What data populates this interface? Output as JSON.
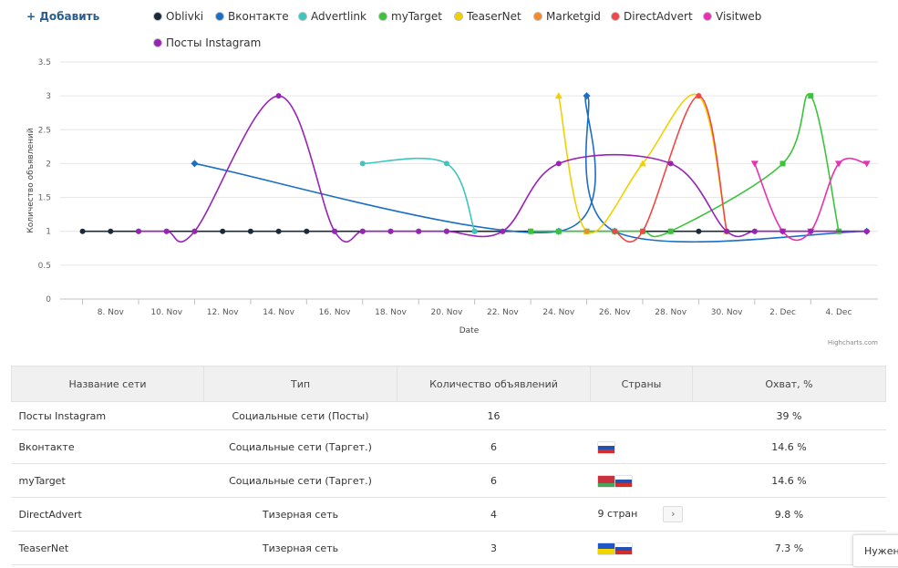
{
  "toolbar": {
    "add_label": "+ Добавить"
  },
  "legend": [
    {
      "label": "Oblivki",
      "color": "#1a2a3a"
    },
    {
      "label": "Вконтакте",
      "color": "#1a6fc4"
    },
    {
      "label": "Advertlink",
      "color": "#3cc6be"
    },
    {
      "label": "myTarget",
      "color": "#3ac43a"
    },
    {
      "label": "TeaserNet",
      "color": "#f2d000"
    },
    {
      "label": "Marketgid",
      "color": "#f58a2a"
    },
    {
      "label": "DirectAdvert",
      "color": "#f04848"
    },
    {
      "label": "Visitweb",
      "color": "#e830b4"
    },
    {
      "label": "Посты Instagram",
      "color": "#9a22b8"
    }
  ],
  "chart_data": {
    "type": "line",
    "xlabel": "Date",
    "ylabel": "Количество объявлений",
    "ylim": [
      0,
      3.5
    ],
    "yticks": [
      "0",
      "0.5",
      "1",
      "1.5",
      "2",
      "2.5",
      "3",
      "3.5"
    ],
    "xticks": [
      "8. Nov",
      "10. Nov",
      "12. Nov",
      "14. Nov",
      "16. Nov",
      "18. Nov",
      "20. Nov",
      "22. Nov",
      "24. Nov",
      "26. Nov",
      "28. Nov",
      "30. Nov",
      "2. Dec",
      "4. Dec"
    ],
    "credit": "Highcharts.com",
    "series": [
      {
        "name": "Oblivki",
        "color": "#1a2a3a",
        "marker": "circle",
        "points": [
          [
            7,
            1
          ],
          [
            8,
            1
          ],
          [
            9,
            1
          ],
          [
            10,
            1
          ],
          [
            11,
            1
          ],
          [
            12,
            1
          ],
          [
            13,
            1
          ],
          [
            14,
            1
          ],
          [
            15,
            1
          ],
          [
            16,
            1
          ],
          [
            17,
            1
          ],
          [
            18,
            1
          ],
          [
            19,
            1
          ],
          [
            20,
            1
          ],
          [
            21,
            1
          ],
          [
            22,
            1
          ],
          [
            23,
            1
          ],
          [
            24,
            1
          ],
          [
            25,
            1
          ],
          [
            26,
            1
          ],
          [
            27,
            1
          ],
          [
            28,
            1
          ],
          [
            29,
            1
          ],
          [
            30,
            1
          ],
          [
            31,
            1
          ],
          [
            32,
            1
          ],
          [
            33,
            1
          ],
          [
            34,
            1
          ],
          [
            35,
            1
          ]
        ]
      },
      {
        "name": "Вконтакте",
        "color": "#1a6fc4",
        "marker": "diamond",
        "points": [
          [
            11,
            2
          ],
          [
            24,
            1
          ],
          [
            25,
            3
          ],
          [
            26,
            1
          ],
          [
            35,
            1
          ]
        ]
      },
      {
        "name": "Advertlink",
        "color": "#3cc6be",
        "marker": "circle",
        "points": [
          [
            17,
            2
          ],
          [
            20,
            2
          ],
          [
            21,
            1
          ]
        ]
      },
      {
        "name": "myTarget",
        "color": "#3ac43a",
        "marker": "square",
        "points": [
          [
            23,
            1
          ],
          [
            24,
            1
          ],
          [
            25,
            1
          ],
          [
            26,
            1
          ],
          [
            27,
            1
          ],
          [
            28,
            1
          ],
          [
            32,
            2
          ],
          [
            33,
            3
          ],
          [
            34,
            1
          ]
        ]
      },
      {
        "name": "TeaserNet",
        "color": "#f2d000",
        "marker": "triangle",
        "points": [
          [
            24,
            3
          ],
          [
            25,
            1
          ],
          [
            27,
            2
          ],
          [
            29,
            3
          ],
          [
            30,
            1
          ]
        ]
      },
      {
        "name": "Marketgid",
        "color": "#f58a2a",
        "marker": "circle",
        "points": [
          [
            25,
            1
          ]
        ]
      },
      {
        "name": "DirectAdvert",
        "color": "#f04848",
        "marker": "circle",
        "points": [
          [
            26,
            1
          ],
          [
            27,
            1
          ],
          [
            29,
            3
          ],
          [
            30,
            1
          ]
        ]
      },
      {
        "name": "Visitweb",
        "color": "#e830b4",
        "marker": "triangle-down",
        "points": [
          [
            31,
            2
          ],
          [
            32,
            1
          ],
          [
            33,
            1
          ],
          [
            34,
            2
          ],
          [
            35,
            2
          ]
        ]
      },
      {
        "name": "Посты Instagram",
        "color": "#9a22b8",
        "marker": "circle",
        "points": [
          [
            9,
            1
          ],
          [
            10,
            1
          ],
          [
            11,
            1
          ],
          [
            14,
            3
          ],
          [
            16,
            1
          ],
          [
            17,
            1
          ],
          [
            18,
            1
          ],
          [
            19,
            1
          ],
          [
            20,
            1
          ],
          [
            22,
            1
          ],
          [
            24,
            2
          ],
          [
            28,
            2
          ],
          [
            30,
            1
          ],
          [
            31,
            1
          ],
          [
            32,
            1
          ],
          [
            33,
            1
          ],
          [
            35,
            1
          ]
        ]
      }
    ]
  },
  "table": {
    "headers": [
      "Название сети",
      "Тип",
      "Количество объявлений",
      "Страны",
      "Охват, %"
    ],
    "rows": [
      {
        "name": "Посты Instagram",
        "type": "Социальные сети (Посты)",
        "count": "16",
        "countries": "",
        "reach": "39 %"
      },
      {
        "name": "Вконтакте",
        "type": "Социальные сети (Таргет.)",
        "count": "6",
        "countries": "",
        "reach": "14.6 %"
      },
      {
        "name": "myTarget",
        "type": "Социальные сети (Таргет.)",
        "count": "6",
        "countries": "",
        "reach": "14.6 %"
      },
      {
        "name": "DirectAdvert",
        "type": "Тизерная сеть",
        "count": "4",
        "countries": "9 стран",
        "reach": "9.8 %"
      },
      {
        "name": "TeaserNet",
        "type": "Тизерная сеть",
        "count": "3",
        "countries": "",
        "reach": "7.3 %"
      }
    ]
  },
  "help": {
    "label": "Нужен"
  }
}
